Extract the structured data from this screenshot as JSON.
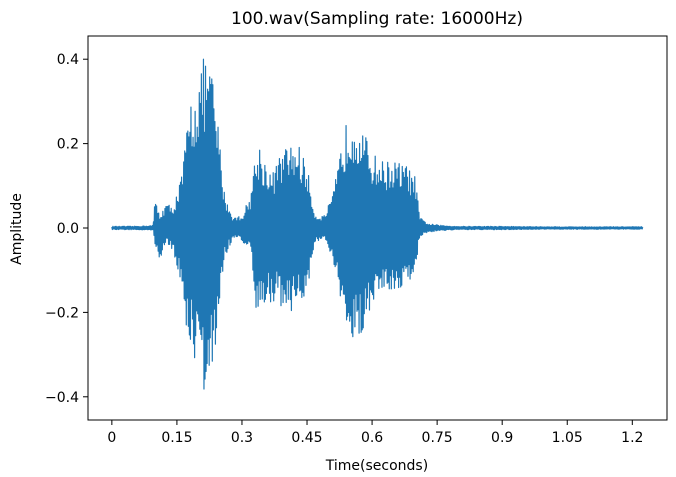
{
  "chart_data": {
    "type": "line",
    "title": "100.wav(Sampling rate: 16000Hz)",
    "xlabel": "Time(seconds)",
    "ylabel": "Amplitude",
    "xlim": [
      -0.055,
      1.28
    ],
    "ylim": [
      -0.455,
      0.455
    ],
    "xticks": [
      0,
      0.15,
      0.3,
      0.45,
      0.6,
      0.75,
      0.9,
      1.05,
      1.2
    ],
    "xtick_labels": [
      "0",
      "0.15",
      "0.3",
      "0.45",
      "0.6",
      "0.75",
      "0.9",
      "1.05",
      "1.2"
    ],
    "yticks": [
      0.4,
      0.2,
      0.0,
      -0.2,
      -0.4
    ],
    "ytick_labels": [
      "0.4",
      "0.2",
      "0.0",
      "−0.2",
      "−0.4"
    ],
    "grid": false,
    "series": [
      {
        "color": "#1f77b4",
        "envelope": {
          "time": [
            0,
            0.05,
            0.095,
            0.1,
            0.11,
            0.125,
            0.14,
            0.16,
            0.18,
            0.2,
            0.21,
            0.22,
            0.23,
            0.24,
            0.26,
            0.28,
            0.3,
            0.32,
            0.33,
            0.34,
            0.35,
            0.37,
            0.39,
            0.41,
            0.43,
            0.45,
            0.46,
            0.47,
            0.49,
            0.51,
            0.53,
            0.545,
            0.56,
            0.58,
            0.6,
            0.62,
            0.65,
            0.68,
            0.7,
            0.71,
            0.73,
            0.76,
            0.8,
            0.9,
            1.0,
            1.1,
            1.2,
            1.225
          ],
          "upper": [
            0.004,
            0.004,
            0.006,
            0.075,
            0.03,
            0.06,
            0.05,
            0.12,
            0.3,
            0.36,
            0.4,
            0.41,
            0.38,
            0.3,
            0.08,
            0.025,
            0.03,
            0.08,
            0.17,
            0.2,
            0.17,
            0.13,
            0.18,
            0.2,
            0.2,
            0.15,
            0.08,
            0.03,
            0.03,
            0.08,
            0.2,
            0.27,
            0.28,
            0.23,
            0.18,
            0.16,
            0.16,
            0.15,
            0.12,
            0.025,
            0.01,
            0.006,
            0.004,
            0.004,
            0.003,
            0.003,
            0.003,
            0.003
          ],
          "lower": [
            -0.004,
            -0.004,
            -0.006,
            -0.04,
            -0.09,
            -0.04,
            -0.05,
            -0.15,
            -0.3,
            -0.33,
            -0.39,
            -0.41,
            -0.36,
            -0.28,
            -0.07,
            -0.025,
            -0.03,
            -0.06,
            -0.2,
            -0.22,
            -0.2,
            -0.17,
            -0.19,
            -0.2,
            -0.19,
            -0.16,
            -0.09,
            -0.03,
            -0.03,
            -0.08,
            -0.2,
            -0.28,
            -0.28,
            -0.24,
            -0.18,
            -0.15,
            -0.15,
            -0.14,
            -0.1,
            -0.02,
            -0.01,
            -0.006,
            -0.004,
            -0.004,
            -0.003,
            -0.003,
            -0.003,
            -0.003
          ]
        }
      }
    ]
  }
}
